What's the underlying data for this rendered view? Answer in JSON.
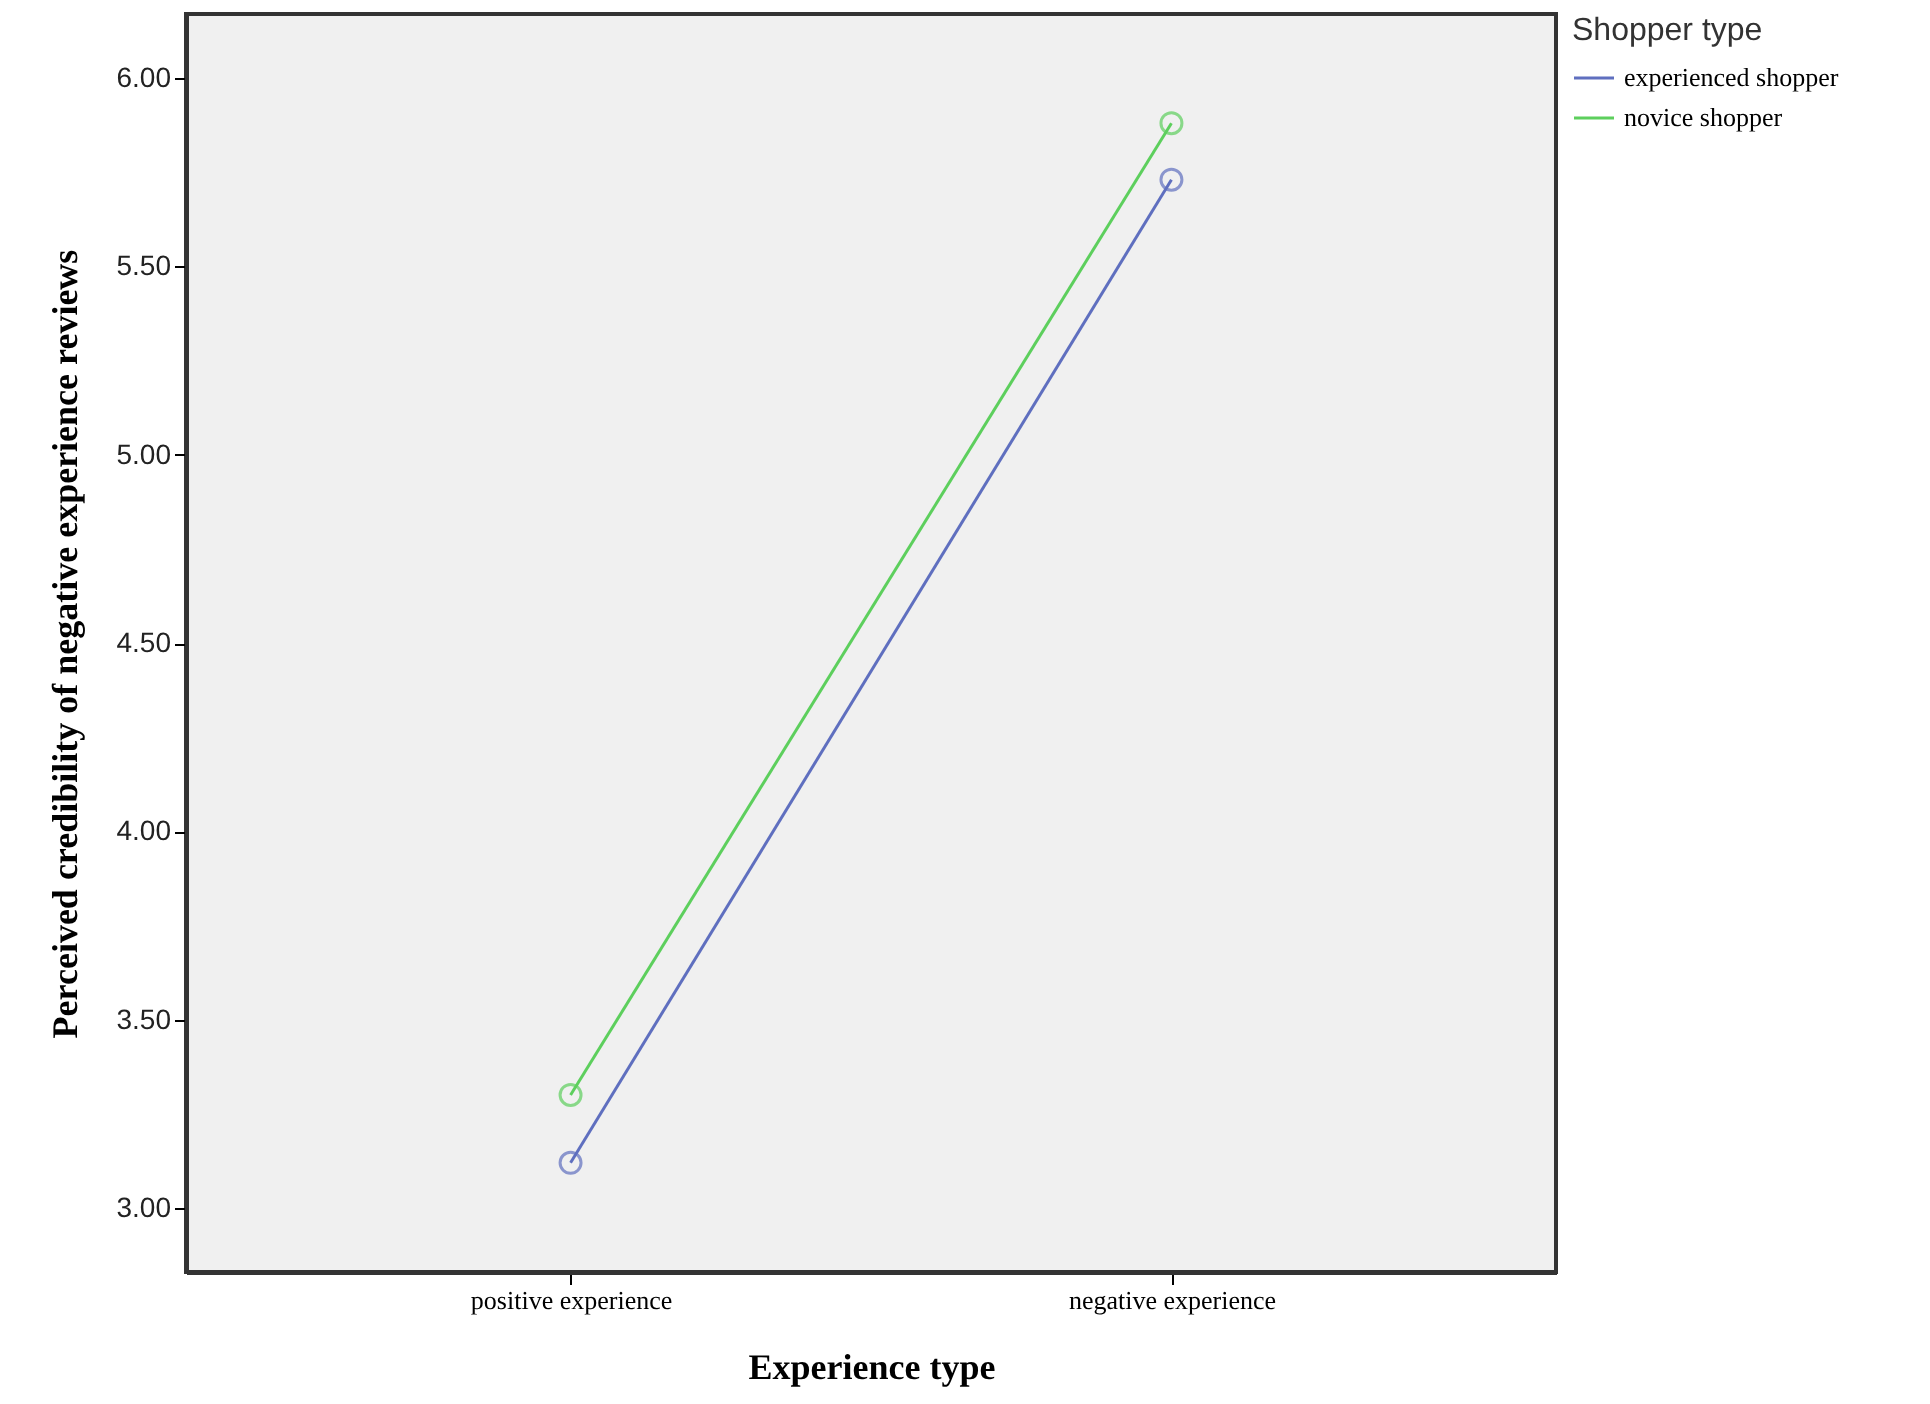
{
  "chart_data": {
    "type": "line",
    "xlabel": "Experience type",
    "ylabel": "Perceived credibility of negative experience reviews",
    "legend_title": "Shopper type",
    "categories": [
      "positive experience",
      "negative experience"
    ],
    "series": [
      {
        "name": "experienced shopper",
        "color": "#5f6fbf",
        "values": [
          3.12,
          5.73
        ]
      },
      {
        "name": "novice shopper",
        "color": "#5dcf5d",
        "values": [
          3.3,
          5.88
        ]
      }
    ],
    "ylim": [
      2.83,
      6.17
    ],
    "yticks": [
      {
        "value": 3,
        "label": "3.00"
      },
      {
        "value": 3.5,
        "label": "3.50"
      },
      {
        "value": 4,
        "label": "4.00"
      },
      {
        "value": 4.5,
        "label": "4.50"
      },
      {
        "value": 5,
        "label": "5.00"
      },
      {
        "value": 5.5,
        "label": "5.50"
      },
      {
        "value": 6,
        "label": "6.00"
      }
    ],
    "marker": "circle",
    "legend": "top right",
    "grid": false,
    "line_style": "solid"
  }
}
